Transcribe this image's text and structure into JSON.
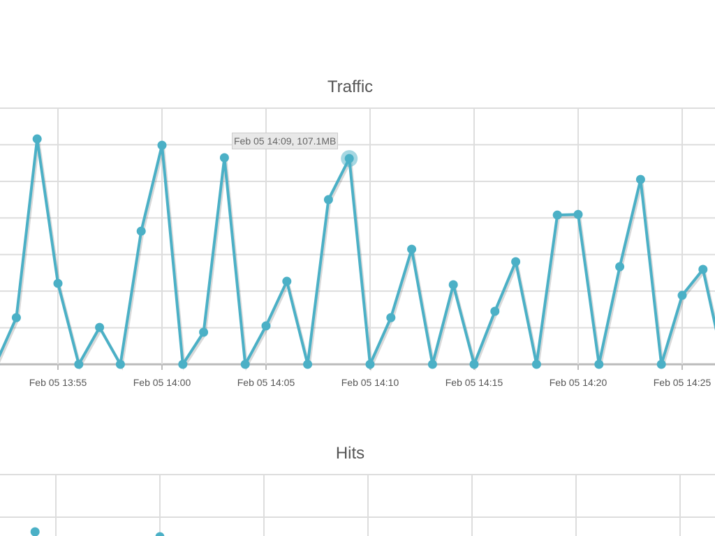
{
  "chart_data": [
    {
      "type": "line",
      "title": "Traffic",
      "unit": "MB",
      "color": "#4bb0c6",
      "grid": true,
      "ylim": [
        0,
        133.3
      ],
      "xticks": [
        "Feb 05 13:55",
        "Feb 05 14:00",
        "Feb 05 14:05",
        "Feb 05 14:10",
        "Feb 05 14:15",
        "Feb 05 14:20",
        "Feb 05 14:25"
      ],
      "x": [
        "13:52",
        "13:53",
        "13:54",
        "13:55",
        "13:56",
        "13:57",
        "13:58",
        "13:59",
        "14:00",
        "14:01",
        "14:02",
        "14:03",
        "14:04",
        "14:05",
        "14:06",
        "14:07",
        "14:08",
        "14:09",
        "14:10",
        "14:11",
        "14:12",
        "14:13",
        "14:14",
        "14:15",
        "14:16",
        "14:17",
        "14:18",
        "14:19",
        "14:20",
        "14:21",
        "14:22",
        "14:23",
        "14:24",
        "14:25",
        "14:26",
        "14:27"
      ],
      "values": [
        0,
        24.3,
        117.3,
        42.1,
        0,
        19.2,
        0,
        69.3,
        114.0,
        0,
        16.7,
        107.5,
        0,
        20.0,
        43.2,
        0,
        85.7,
        107.1,
        0,
        24.3,
        59.9,
        0,
        41.4,
        0,
        27.6,
        53.4,
        0,
        77.7,
        78.0,
        0,
        50.8,
        96.2,
        0,
        35.9,
        49.4,
        0
      ],
      "tooltip": "Feb 05 14:09, 107.1MB",
      "highlight": "14:09"
    },
    {
      "type": "line",
      "title": "Hits",
      "color": "#4bb0c6",
      "grid": true,
      "x": [
        "13:54",
        "14:00"
      ]
    }
  ]
}
